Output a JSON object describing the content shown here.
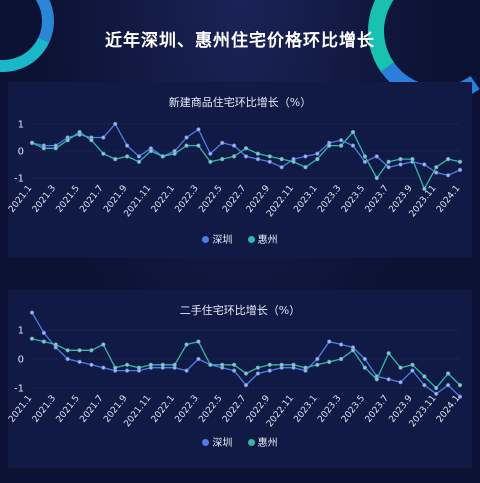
{
  "page": {
    "title": "近年深圳、惠州住宅价格环比增长"
  },
  "colors": {
    "shenzhen": "#4e7de9",
    "huizhou": "#33b8a8",
    "marker_fill": "#a9b4d6"
  },
  "chart_data": [
    {
      "type": "line",
      "title": "新建商品住宅环比增长（%）",
      "x": [
        "2021.1",
        "2021.2",
        "2021.3",
        "2021.4",
        "2021.5",
        "2021.6",
        "2021.7",
        "2021.8",
        "2021.9",
        "2021.10",
        "2021.11",
        "2021.12",
        "2022.1",
        "2022.2",
        "2022.3",
        "2022.4",
        "2022.5",
        "2022.6",
        "2022.7",
        "2022.8",
        "2022.9",
        "2022.10",
        "2022.11",
        "2022.12",
        "2023.1",
        "2023.2",
        "2023.3",
        "2023.4",
        "2023.5",
        "2023.6",
        "2023.7",
        "2023.8",
        "2023.9",
        "2023.10",
        "2023.11",
        "2023.12",
        "2024.1"
      ],
      "tick_labels": [
        "2021.1",
        "2021.3",
        "2021.5",
        "2021.7",
        "2021.9",
        "2021.11",
        "2022.1",
        "2022.3",
        "2022.5",
        "2022.7",
        "2022.9",
        "2022.11",
        "2023.1",
        "2023.3",
        "2023.5",
        "2023.7",
        "2023.9",
        "2023.11",
        "2024.1"
      ],
      "ylim": [
        -1,
        1
      ],
      "yticks": [
        "1",
        "0",
        "-1"
      ],
      "series": [
        {
          "name": "深圳",
          "values": [
            0.3,
            0.2,
            0.2,
            0.5,
            0.6,
            0.5,
            0.5,
            1.0,
            0.2,
            -0.2,
            0.1,
            -0.2,
            0.0,
            0.5,
            0.8,
            -0.1,
            0.3,
            0.2,
            -0.2,
            -0.3,
            -0.4,
            -0.6,
            -0.3,
            -0.2,
            -0.1,
            0.3,
            0.4,
            0.2,
            -0.4,
            -0.2,
            -0.6,
            -0.5,
            -0.4,
            -0.5,
            -0.8,
            -0.9,
            -0.7
          ]
        },
        {
          "name": "惠州",
          "values": [
            0.3,
            0.1,
            0.1,
            0.4,
            0.7,
            0.4,
            -0.1,
            -0.3,
            -0.2,
            -0.4,
            0.0,
            -0.2,
            -0.1,
            0.2,
            0.2,
            -0.4,
            -0.3,
            -0.2,
            0.1,
            -0.1,
            -0.2,
            -0.3,
            -0.4,
            -0.6,
            -0.3,
            0.2,
            0.2,
            0.7,
            -0.2,
            -1.0,
            -0.4,
            -0.3,
            -0.3,
            -1.4,
            -0.6,
            -0.3,
            -0.4
          ]
        }
      ]
    },
    {
      "type": "line",
      "title": "二手住宅环比增长（%）",
      "x": [
        "2021.1",
        "2021.2",
        "2021.3",
        "2021.4",
        "2021.5",
        "2021.6",
        "2021.7",
        "2021.8",
        "2021.9",
        "2021.10",
        "2021.11",
        "2021.12",
        "2022.1",
        "2022.2",
        "2022.3",
        "2022.4",
        "2022.5",
        "2022.6",
        "2022.7",
        "2022.8",
        "2022.9",
        "2022.10",
        "2022.11",
        "2022.12",
        "2023.1",
        "2023.2",
        "2023.3",
        "2023.4",
        "2023.5",
        "2023.6",
        "2023.7",
        "2023.8",
        "2023.9",
        "2023.10",
        "2023.11",
        "2023.12",
        "2024.1"
      ],
      "tick_labels": [
        "2021.1",
        "2021.3",
        "2021.5",
        "2021.7",
        "2021.9",
        "2021.11",
        "2022.1",
        "2022.3",
        "2022.5",
        "2022.7",
        "2022.9",
        "2022.11",
        "2023.1",
        "2023.3",
        "2023.5",
        "2023.7",
        "2023.9",
        "2023.11",
        "2024.1"
      ],
      "ylim": [
        -1,
        1
      ],
      "yticks": [
        "1",
        "0",
        "-1"
      ],
      "series": [
        {
          "name": "深圳",
          "values": [
            1.6,
            0.9,
            0.4,
            0.0,
            -0.1,
            -0.2,
            -0.3,
            -0.4,
            -0.4,
            -0.4,
            -0.3,
            -0.3,
            -0.3,
            -0.4,
            0.0,
            -0.2,
            -0.3,
            -0.4,
            -0.9,
            -0.5,
            -0.4,
            -0.3,
            -0.3,
            -0.4,
            0.0,
            0.6,
            0.5,
            0.4,
            0.0,
            -0.6,
            -0.7,
            -0.8,
            -0.4,
            -0.9,
            -1.2,
            -0.9,
            -1.3
          ]
        },
        {
          "name": "惠州",
          "values": [
            0.7,
            0.6,
            0.5,
            0.3,
            0.3,
            0.3,
            0.5,
            -0.3,
            -0.2,
            -0.3,
            -0.2,
            -0.2,
            -0.2,
            0.5,
            0.6,
            -0.2,
            -0.2,
            -0.2,
            -0.5,
            -0.3,
            -0.2,
            -0.2,
            -0.2,
            -0.3,
            -0.2,
            -0.1,
            0.0,
            0.3,
            -0.3,
            -0.7,
            0.2,
            -0.3,
            -0.2,
            -0.6,
            -1.0,
            -0.5,
            -0.9
          ]
        }
      ]
    }
  ]
}
